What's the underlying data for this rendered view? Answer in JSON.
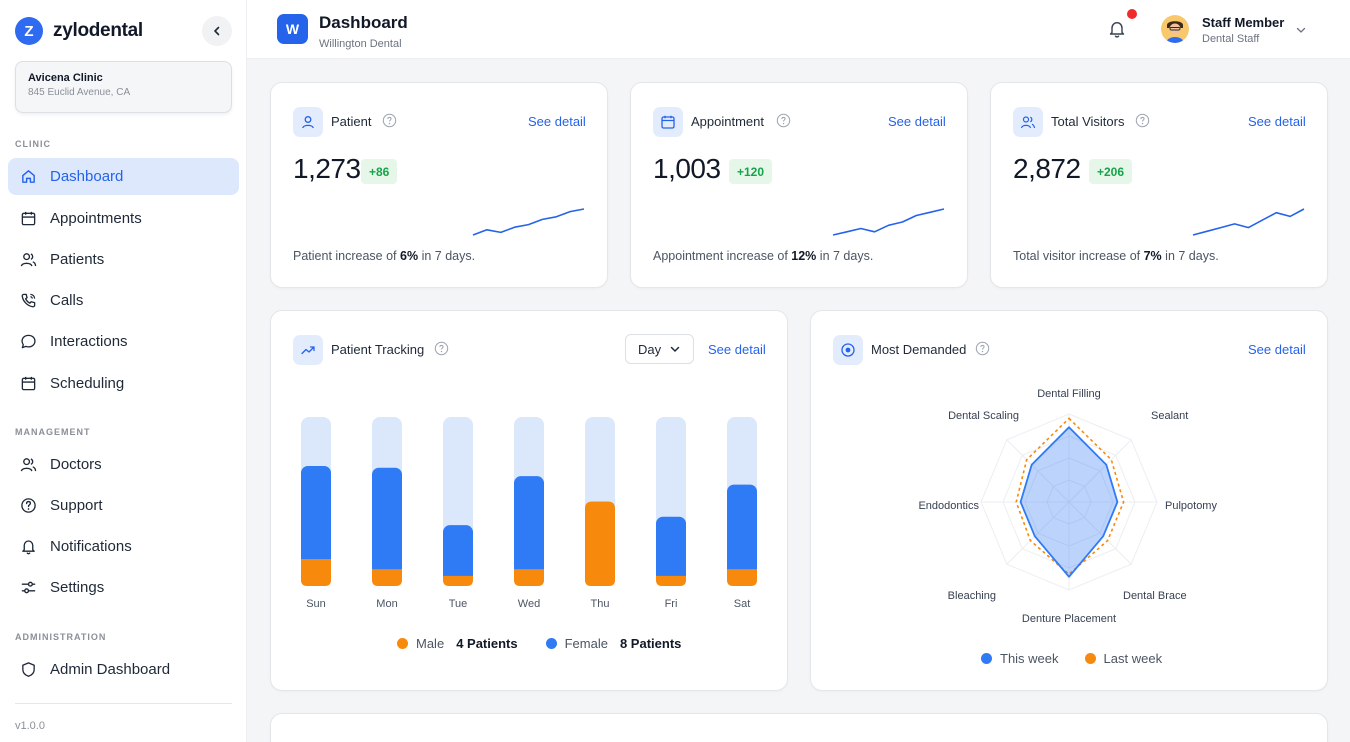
{
  "brand": {
    "logo_letter": "Z",
    "name": "zylodental"
  },
  "clinic": {
    "name": "Avicena Clinic",
    "address": "845 Euclid Avenue, CA"
  },
  "sidebar": {
    "sections": {
      "clinic": "CLINIC",
      "management": "MANAGEMENT",
      "administration": "ADMINISTRATION"
    },
    "items": [
      {
        "label": "Dashboard",
        "icon": "home-icon",
        "active": true
      },
      {
        "label": "Appointments",
        "icon": "calendar-icon"
      },
      {
        "label": "Patients",
        "icon": "users-icon"
      },
      {
        "label": "Calls",
        "icon": "phone-icon"
      },
      {
        "label": "Interactions",
        "icon": "chat-icon"
      },
      {
        "label": "Scheduling",
        "icon": "calendar-icon"
      },
      {
        "label": "Doctors",
        "icon": "users-icon"
      },
      {
        "label": "Support",
        "icon": "help-icon"
      },
      {
        "label": "Notifications",
        "icon": "bell-icon"
      },
      {
        "label": "Settings",
        "icon": "sliders-icon"
      },
      {
        "label": "Admin Dashboard",
        "icon": "shield-icon"
      }
    ],
    "version": "v1.0.0"
  },
  "header": {
    "workspace_letter": "W",
    "title": "Dashboard",
    "subtitle": "Willington Dental",
    "user_name": "Staff Member",
    "user_role": "Dental Staff"
  },
  "stats": [
    {
      "title": "Patient",
      "value": "1,273",
      "delta": "+86",
      "note_prefix": "Patient increase of ",
      "note_pct": "6%",
      "note_suffix": " in 7 days.",
      "link": "See detail",
      "trend": [
        2,
        4,
        3,
        5,
        6,
        8,
        9,
        11,
        12
      ]
    },
    {
      "title": "Appointment",
      "value": "1,003",
      "delta": "+120",
      "note_prefix": "Appointment increase of ",
      "note_pct": "12%",
      "note_suffix": " in 7 days.",
      "link": "See detail",
      "trend": [
        3,
        4,
        5,
        4,
        6,
        7,
        9,
        10,
        11
      ]
    },
    {
      "title": "Total Visitors",
      "value": "2,872",
      "delta": "+206",
      "note_prefix": "Total visitor increase of ",
      "note_pct": "7%",
      "note_suffix": " in 7 days.",
      "link": "See detail",
      "trend": [
        3,
        4,
        5,
        6,
        5,
        7,
        9,
        8,
        10
      ]
    }
  ],
  "tracking": {
    "title": "Patient Tracking",
    "range": "Day",
    "link": "See detail",
    "legend": {
      "male_label": "Male",
      "male_value": "4 Patients",
      "female_label": "Female",
      "female_value": "8 Patients"
    }
  },
  "demanded": {
    "title": "Most Demanded",
    "link": "See detail",
    "legend": {
      "this_week": "This week",
      "last_week": "Last week"
    }
  },
  "colors": {
    "accent": "#2563eb",
    "female": "#2f7af5",
    "male": "#f7890c",
    "track": "#dbe7fb"
  },
  "chart_data": [
    {
      "type": "bar",
      "title": "Patient Tracking",
      "categories": [
        "Sun",
        "Mon",
        "Tue",
        "Wed",
        "Thu",
        "Fri",
        "Sat"
      ],
      "ylim": [
        0,
        10
      ],
      "series": [
        {
          "name": "Male",
          "values": [
            1.6,
            1.0,
            0.6,
            1.0,
            5.0,
            0.6,
            1.0
          ]
        },
        {
          "name": "Female",
          "values": [
            5.5,
            6.0,
            3.0,
            5.5,
            0.0,
            3.5,
            5.0
          ]
        }
      ]
    },
    {
      "type": "radar",
      "title": "Most Demanded",
      "categories": [
        "Dental Filling",
        "Sealant",
        "Pulpotomy",
        "Dental Brace",
        "Denture Placement",
        "Bleaching",
        "Endodontics",
        "Dental Scaling"
      ],
      "series": [
        {
          "name": "This week",
          "values": [
            0.85,
            0.6,
            0.55,
            0.55,
            0.85,
            0.55,
            0.55,
            0.6
          ]
        },
        {
          "name": "Last week",
          "values": [
            0.95,
            0.68,
            0.62,
            0.62,
            0.82,
            0.62,
            0.6,
            0.68
          ]
        }
      ]
    }
  ]
}
